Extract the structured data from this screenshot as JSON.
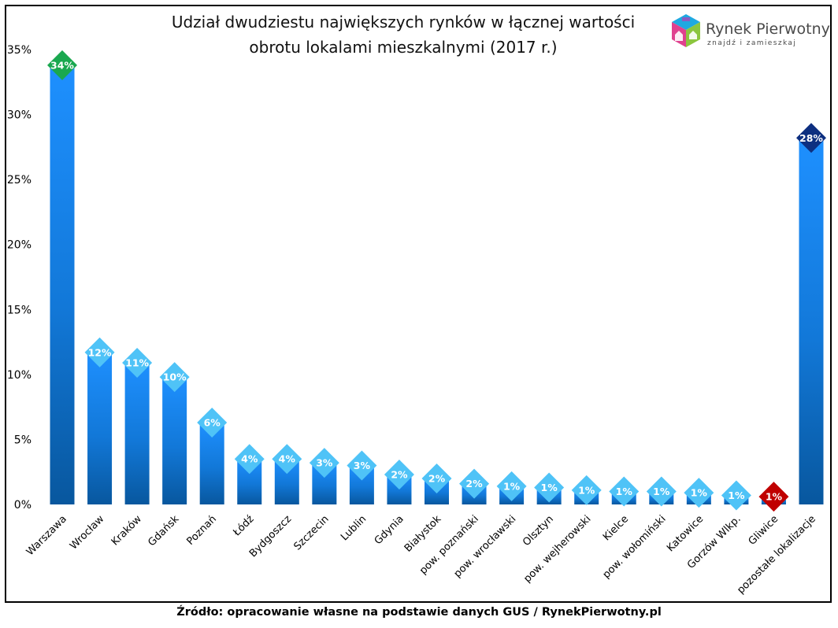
{
  "logo": {
    "name": "Rynek Pierwotny",
    "tagline": "znajdź i zamieszkaj",
    "colors": [
      "#e0418f",
      "#8cc63f",
      "#1fa9e1",
      "#8a5cc2"
    ]
  },
  "source": "Źródło: opracowanie własne na podstawie danych GUS / RynekPierwotny.pl",
  "chart_data": {
    "type": "bar",
    "title": [
      "Udział dwudziestu największych rynków w łącznej wartości",
      "obrotu lokalami mieszkalnymi  (2017 r.)"
    ],
    "xlabel": "",
    "ylabel": "",
    "ylim": [
      0,
      35
    ],
    "yticks": [
      0,
      5,
      10,
      15,
      20,
      25,
      30,
      35
    ],
    "ytick_labels": [
      "0%",
      "5%",
      "10%",
      "15%",
      "20%",
      "25%",
      "30%",
      "35%"
    ],
    "grid": false,
    "categories": [
      "Warszawa",
      "Wrocław",
      "Kraków",
      "Gdańsk",
      "Poznań",
      "Łódź",
      "Bydgoszcz",
      "Szczecin",
      "Lublin",
      "Gdynia",
      "Białystok",
      "pow. poznański",
      "pow. wrocławski",
      "Olsztyn",
      "pow. wejherowski",
      "Kielce",
      "pow. wołomiński",
      "Katowice",
      "Gorzów Wlkp.",
      "Gliwice",
      "pozostałe lokalizacje"
    ],
    "values": [
      33.8,
      11.7,
      10.9,
      9.8,
      6.3,
      3.5,
      3.5,
      3.2,
      3.0,
      2.3,
      2.0,
      1.6,
      1.4,
      1.3,
      1.1,
      1.0,
      1.0,
      0.9,
      0.7,
      0.6,
      28.2
    ],
    "data_labels": [
      "34%",
      "12%",
      "11%",
      "10%",
      "6%",
      "4%",
      "4%",
      "3%",
      "3%",
      "2%",
      "2%",
      "2%",
      "1%",
      "1%",
      "1%",
      "1%",
      "1%",
      "1%",
      "1%",
      "1%",
      "28%"
    ],
    "marker_colors": [
      "#1aa84f",
      "#4fc3f7",
      "#4fc3f7",
      "#4fc3f7",
      "#4fc3f7",
      "#4fc3f7",
      "#4fc3f7",
      "#4fc3f7",
      "#4fc3f7",
      "#4fc3f7",
      "#4fc3f7",
      "#4fc3f7",
      "#4fc3f7",
      "#4fc3f7",
      "#4fc3f7",
      "#4fc3f7",
      "#4fc3f7",
      "#4fc3f7",
      "#4fc3f7",
      "#c00000",
      "#0d2f80"
    ],
    "bar_color_top": "#1e90ff",
    "bar_color_bottom": "#08579e"
  }
}
